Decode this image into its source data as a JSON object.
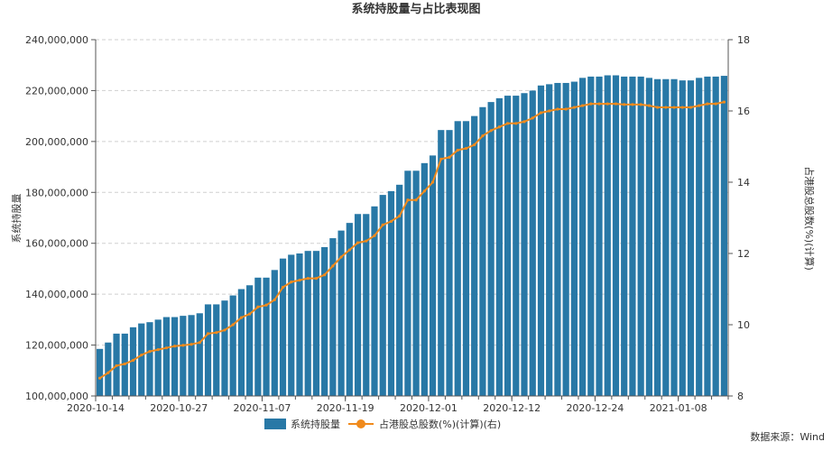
{
  "chart_data": {
    "type": "bar",
    "title": "系统持股量与占比表现图",
    "source": "数据来源：Wind",
    "x_tick_labels": [
      "2020-10-14",
      "2020-10-27",
      "2020-11-07",
      "2020-11-19",
      "2020-12-01",
      "2020-12-12",
      "2020-12-24",
      "2021-01-08"
    ],
    "y_left": {
      "label": "系统持股量",
      "range": [
        100000000,
        240000000
      ],
      "ticks": [
        "100,000,000",
        "120,000,000",
        "140,000,000",
        "160,000,000",
        "180,000,000",
        "200,000,000",
        "220,000,000",
        "240,000,000"
      ]
    },
    "y_right": {
      "label": "占港股总股数(%)(计算)",
      "range": [
        8,
        18
      ],
      "ticks": [
        "8",
        "10",
        "12",
        "14",
        "16",
        "18"
      ]
    },
    "grid": true,
    "legend_position": "bottom",
    "series": [
      {
        "name": "系统持股量",
        "type": "bar",
        "axis": "left",
        "color": "#2878a6",
        "values": [
          118500000,
          121000000,
          124500000,
          124500000,
          127000000,
          128500000,
          129000000,
          130000000,
          131000000,
          131000000,
          131500000,
          131800000,
          132500000,
          136000000,
          136000000,
          137500000,
          139500000,
          142000000,
          143500000,
          146500000,
          146500000,
          149500000,
          154000000,
          155500000,
          156000000,
          157000000,
          157000000,
          158500000,
          162000000,
          165000000,
          168000000,
          171500000,
          171500000,
          174500000,
          179000000,
          180500000,
          183000000,
          188500000,
          188500000,
          191500000,
          194500000,
          204500000,
          204500000,
          208000000,
          208000000,
          210000000,
          213500000,
          215500000,
          217000000,
          218000000,
          218000000,
          219000000,
          220000000,
          222000000,
          222500000,
          223000000,
          223000000,
          223500000,
          225000000,
          225500000,
          225500000,
          226000000,
          226000000,
          225500000,
          225500000,
          225500000,
          225000000,
          224500000,
          224500000,
          224500000,
          224000000,
          224000000,
          225000000,
          225500000,
          225500000,
          225800000
        ]
      },
      {
        "name": "占港股总股数(%)(计算)(右)",
        "type": "line",
        "axis": "right",
        "color": "#f08a1c",
        "values": [
          8.5,
          8.65,
          8.85,
          8.9,
          9.0,
          9.15,
          9.25,
          9.3,
          9.35,
          9.4,
          9.42,
          9.45,
          9.5,
          9.75,
          9.78,
          9.85,
          10.0,
          10.2,
          10.3,
          10.5,
          10.55,
          10.7,
          11.05,
          11.2,
          11.25,
          11.3,
          11.3,
          11.4,
          11.65,
          11.9,
          12.1,
          12.3,
          12.35,
          12.5,
          12.8,
          12.9,
          13.05,
          13.5,
          13.5,
          13.75,
          14.0,
          14.65,
          14.7,
          14.9,
          14.95,
          15.05,
          15.3,
          15.45,
          15.55,
          15.65,
          15.65,
          15.7,
          15.8,
          15.95,
          16.0,
          16.05,
          16.05,
          16.1,
          16.15,
          16.2,
          16.2,
          16.2,
          16.2,
          16.18,
          16.18,
          16.18,
          16.15,
          16.1,
          16.1,
          16.1,
          16.1,
          16.1,
          16.15,
          16.2,
          16.2,
          16.25
        ]
      }
    ]
  }
}
